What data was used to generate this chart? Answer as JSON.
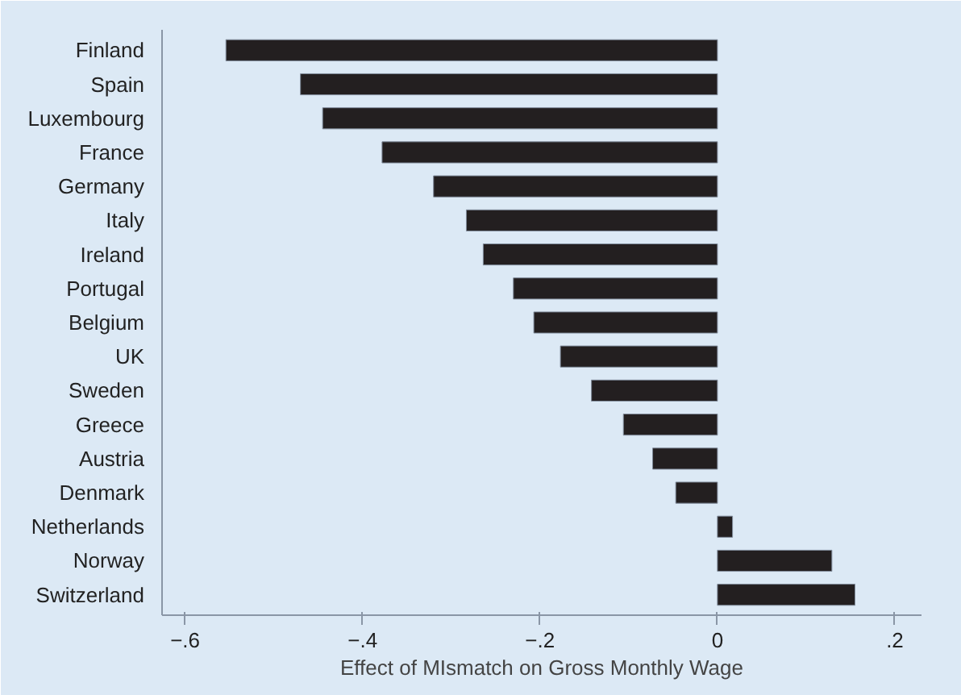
{
  "chart_data": {
    "type": "bar",
    "orientation": "horizontal",
    "xlabel": "Effect of MIsmatch on Gross Monthly Wage",
    "categories": [
      "Finland",
      "Spain",
      "Luxembourg",
      "France",
      "Germany",
      "Italy",
      "Ireland",
      "Portugal",
      "Belgium",
      "UK",
      "Sweden",
      "Greece",
      "Austria",
      "Denmark",
      "Netherlands",
      "Norway",
      "Switzerland"
    ],
    "values": [
      -0.554,
      -0.47,
      -0.445,
      -0.378,
      -0.32,
      -0.283,
      -0.264,
      -0.23,
      -0.207,
      -0.177,
      -0.142,
      -0.106,
      -0.073,
      -0.047,
      0.017,
      0.129,
      0.155
    ],
    "color": "#231f20",
    "xlim": [
      -0.626,
      0.23
    ],
    "xticks": [
      {
        "value": -0.6,
        "label": "−.6"
      },
      {
        "value": -0.4,
        "label": "−.4"
      },
      {
        "value": -0.2,
        "label": "−.2"
      },
      0,
      {
        "value": 0.2,
        "label": ".2"
      }
    ],
    "grid": false
  }
}
